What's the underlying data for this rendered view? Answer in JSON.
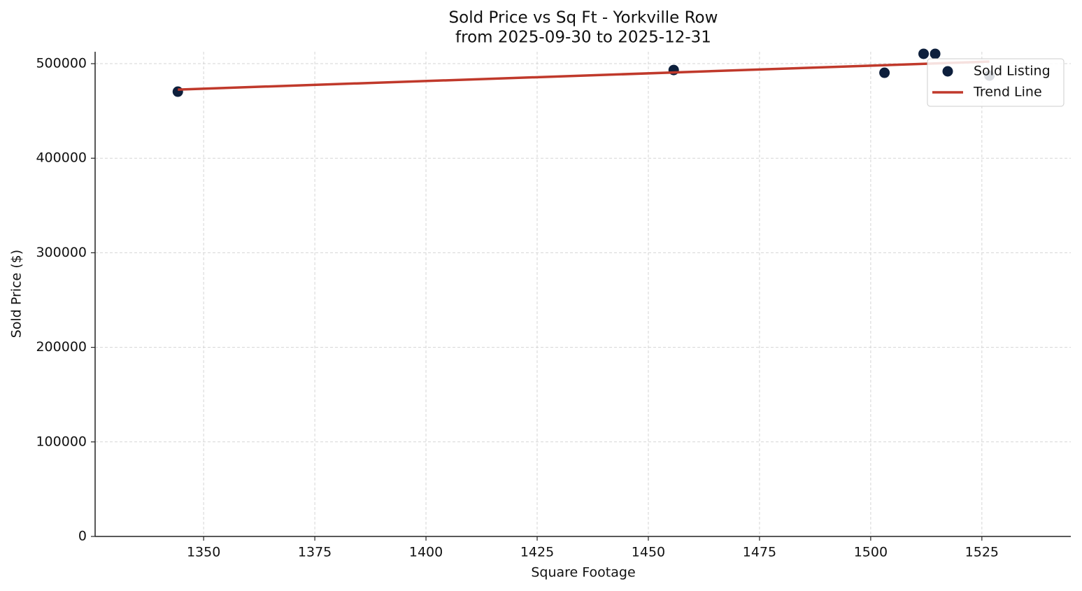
{
  "chart_data": {
    "type": "scatter",
    "title": "Sold Price vs Sq Ft - Yorkville Row",
    "subtitle": "from 2025-09-30 to 2025-12-31",
    "x_label": "Square Footage",
    "y_label": "Sold Price ($)",
    "xlim": [
      1325.6,
      1545.0
    ],
    "xticks": [
      1350,
      1375,
      1400,
      1425,
      1450,
      1475,
      1500,
      1525
    ],
    "ylim": [
      0,
      512600
    ],
    "yticks": [
      0,
      100000,
      200000,
      300000,
      400000,
      500000
    ],
    "grid": true,
    "legend": "upper right",
    "series": [
      {
        "name": "Sold Listing",
        "type": "scatter",
        "color": "#0d1f3c",
        "x": [
          1344.2,
          1455.7,
          1503.1,
          1511.9,
          1514.5,
          1526.7
        ],
        "values": [
          470400,
          493300,
          490400,
          510400,
          510400,
          487400
        ]
      },
      {
        "name": "Trend Line",
        "type": "line",
        "color": "#c0392b",
        "x": [
          1344.2,
          1526.7
        ],
        "values": [
          472600,
          502200
        ]
      }
    ]
  }
}
